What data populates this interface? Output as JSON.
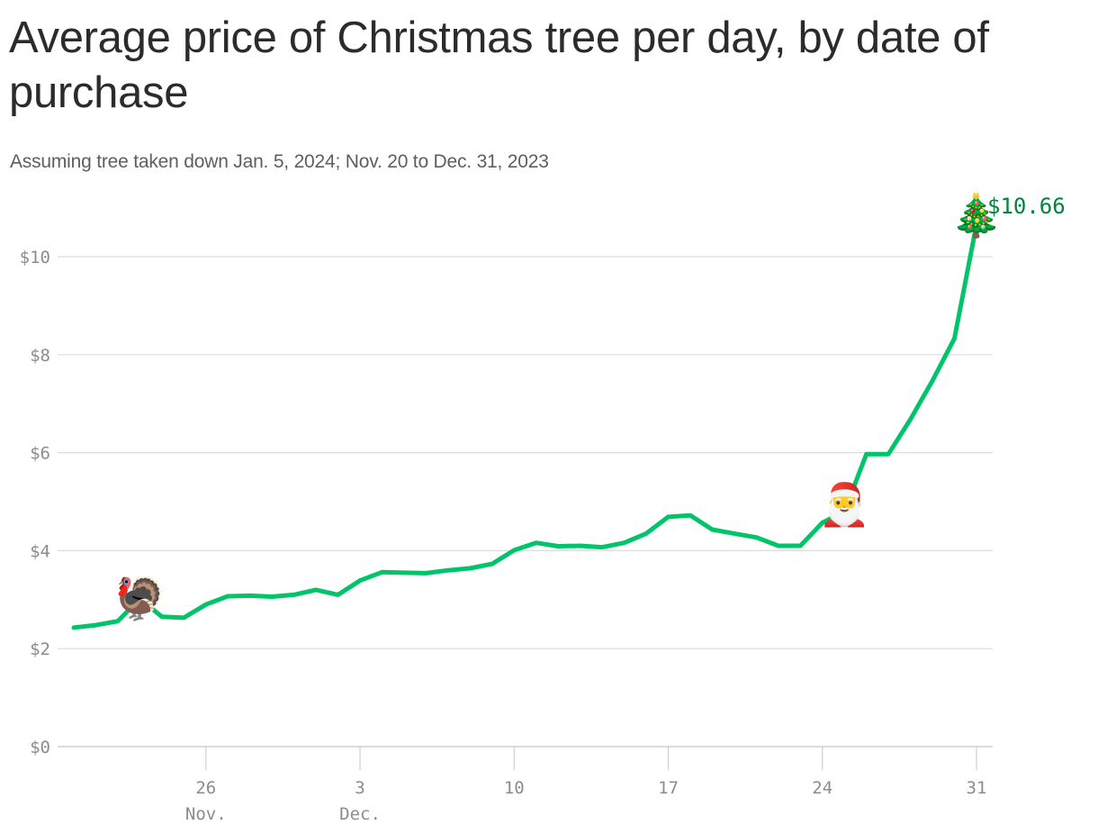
{
  "header": {
    "title": "Average price of Christmas tree per day, by date of purchase",
    "subtitle": "Assuming tree taken down Jan. 5, 2024; Nov. 20 to Dec. 31, 2023"
  },
  "chart_data": {
    "type": "line",
    "title": "Average price of Christmas tree per day, by date of purchase",
    "subtitle": "Assuming tree taken down Jan. 5, 2024; Nov. 20 to Dec. 31, 2023",
    "xlabel": "",
    "ylabel": "",
    "xlim": [
      "2023-11-20",
      "2023-12-31"
    ],
    "ylim": [
      0,
      10.66
    ],
    "grid": true,
    "line_color": "#00c46a",
    "gridline_color": "#dcdcdc",
    "label_color": "#8c8c8c",
    "end_label_color": "#00843d",
    "y_ticks": [
      {
        "value": 0,
        "label": "$0"
      },
      {
        "value": 2,
        "label": "$2"
      },
      {
        "value": 4,
        "label": "$4"
      },
      {
        "value": 6,
        "label": "$6"
      },
      {
        "value": 8,
        "label": "$8"
      },
      {
        "value": 10,
        "label": "$10"
      }
    ],
    "x_ticks": [
      {
        "date": "2023-11-26",
        "label": "26",
        "sublabel": "Nov."
      },
      {
        "date": "2023-12-03",
        "label": "3",
        "sublabel": "Dec."
      },
      {
        "date": "2023-12-10",
        "label": "10",
        "sublabel": ""
      },
      {
        "date": "2023-12-17",
        "label": "17",
        "sublabel": ""
      },
      {
        "date": "2023-12-24",
        "label": "24",
        "sublabel": ""
      },
      {
        "date": "2023-12-31",
        "label": "31",
        "sublabel": ""
      }
    ],
    "series": [
      {
        "x": [
          "2023-11-20",
          "2023-11-21",
          "2023-11-22",
          "2023-11-23",
          "2023-11-24",
          "2023-11-25",
          "2023-11-26",
          "2023-11-27",
          "2023-11-28",
          "2023-11-29",
          "2023-11-30",
          "2023-12-01",
          "2023-12-02",
          "2023-12-03",
          "2023-12-04",
          "2023-12-05",
          "2023-12-06",
          "2023-12-07",
          "2023-12-08",
          "2023-12-09",
          "2023-12-10",
          "2023-12-11",
          "2023-12-12",
          "2023-12-13",
          "2023-12-14",
          "2023-12-15",
          "2023-12-16",
          "2023-12-17",
          "2023-12-18",
          "2023-12-19",
          "2023-12-20",
          "2023-12-21",
          "2023-12-22",
          "2023-12-23",
          "2023-12-24",
          "2023-12-25",
          "2023-12-26",
          "2023-12-27",
          "2023-12-28",
          "2023-12-29",
          "2023-12-30",
          "2023-12-31"
        ],
        "values": [
          2.43,
          2.48,
          2.56,
          3.02,
          2.65,
          2.63,
          2.9,
          3.07,
          3.08,
          3.06,
          3.1,
          3.2,
          3.1,
          3.39,
          3.56,
          3.55,
          3.54,
          3.6,
          3.64,
          3.73,
          4.01,
          4.16,
          4.09,
          4.1,
          4.07,
          4.16,
          4.35,
          4.69,
          4.72,
          4.43,
          4.35,
          4.27,
          4.1,
          4.1,
          4.57,
          4.8,
          5.97,
          5.97,
          6.68,
          7.47,
          8.33,
          10.66
        ]
      }
    ],
    "markers": [
      {
        "date": "2023-11-23",
        "icon": "turkey-icon",
        "glyph": "🦃"
      },
      {
        "date": "2023-12-25",
        "icon": "santa-icon",
        "glyph": "🎅"
      },
      {
        "date": "2023-12-31",
        "icon": "christmas-tree-icon",
        "glyph": "🎄"
      }
    ],
    "end_label": "$10.66"
  }
}
